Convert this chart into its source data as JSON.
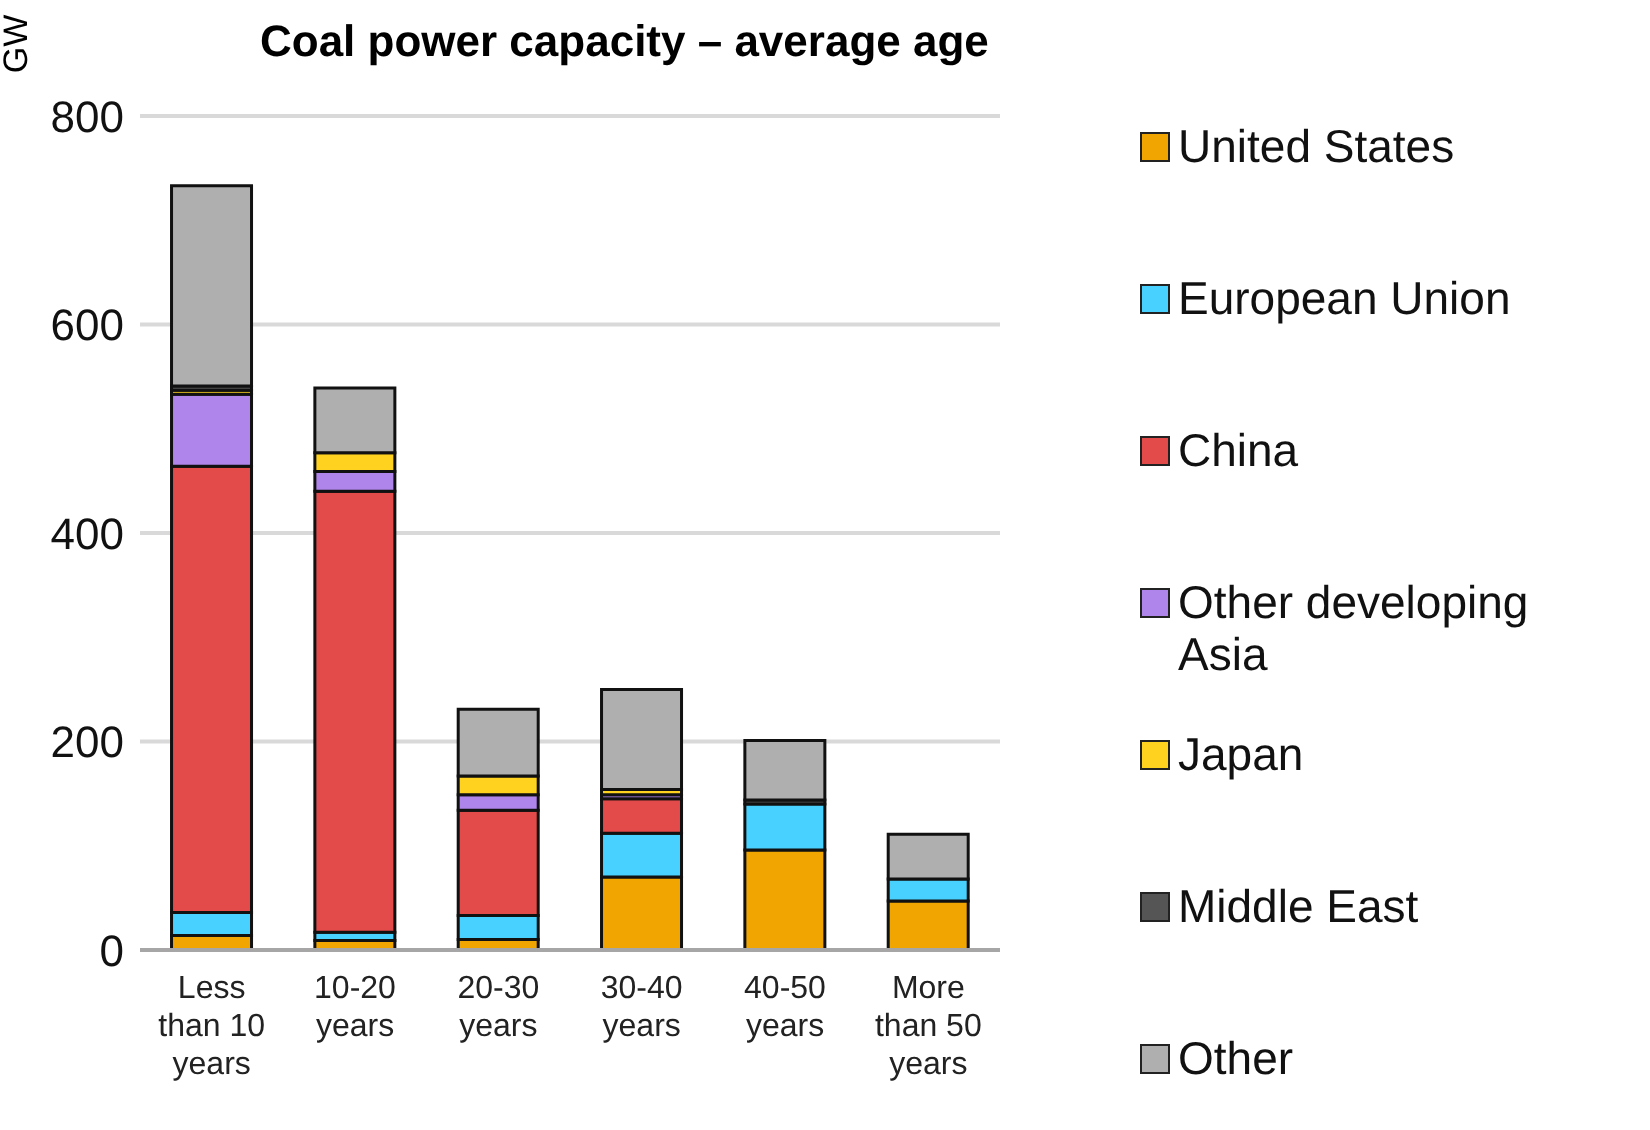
{
  "chart_data": {
    "type": "bar",
    "title": "Coal power capacity – average age",
    "ylabel": "GW",
    "stacked": true,
    "categories": [
      "Less than 10 years",
      "10-20 years",
      "20-30 years",
      "30-40 years",
      "40-50 years",
      "More than 50 years"
    ],
    "series": [
      {
        "name": "United States",
        "color": "#f0a500",
        "values": [
          14,
          9,
          10,
          70,
          96,
          47
        ]
      },
      {
        "name": "European Union",
        "color": "#48d1ff",
        "values": [
          22,
          8,
          23,
          42,
          44,
          21
        ]
      },
      {
        "name": "China",
        "color": "#e34a4a",
        "values": [
          428,
          423,
          101,
          33,
          0,
          0
        ]
      },
      {
        "name": "Other developing Asia",
        "color": "#b085eb",
        "values": [
          69,
          19,
          15,
          4,
          null,
          0
        ]
      },
      {
        "name": "Japan",
        "color": "#ffd21f",
        "values": [
          4,
          18,
          18,
          5,
          null,
          0
        ]
      },
      {
        "name": "Middle East",
        "color": "#555555",
        "values": [
          4,
          0,
          0,
          null,
          4,
          0
        ]
      },
      {
        "name": "Other",
        "color": "#afafaf",
        "values": [
          192,
          62,
          64,
          96,
          57,
          43
        ]
      }
    ],
    "ylim": [
      0,
      800
    ],
    "yticks": [
      0,
      200,
      400,
      600,
      800
    ],
    "grid": "y",
    "legend": "right"
  }
}
